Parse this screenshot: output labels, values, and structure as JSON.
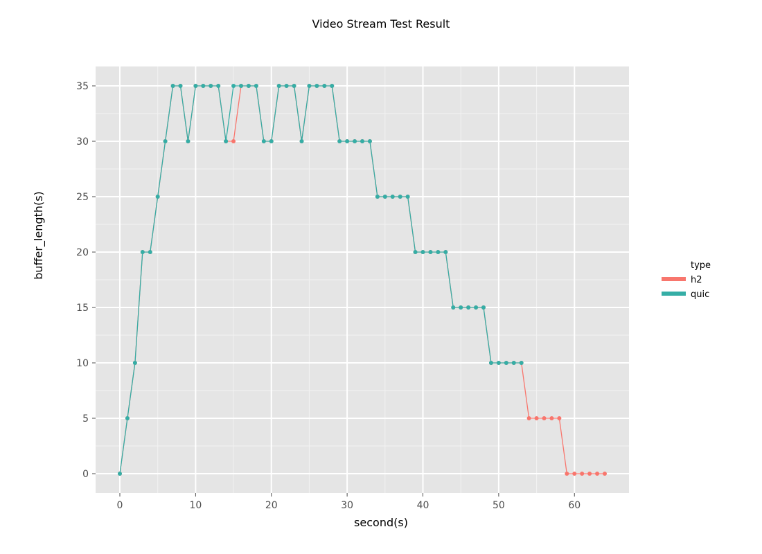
{
  "chart_data": {
    "type": "line",
    "title": "Video Stream Test Result",
    "xlabel": "second(s)",
    "ylabel": "buffer_length(s)",
    "xlim": [
      -3.2,
      67.2
    ],
    "ylim": [
      -1.75,
      36.75
    ],
    "xticks": [
      0,
      10,
      20,
      30,
      40,
      50,
      60
    ],
    "yticks": [
      0,
      5,
      10,
      15,
      20,
      25,
      30,
      35
    ],
    "grid": true,
    "legend": {
      "title": "type",
      "placement": "right"
    },
    "colors": {
      "h2": "#f8766d",
      "quic": "#35aea6",
      "panel": "#e5e5e5",
      "grid": "#ffffff"
    },
    "series": [
      {
        "name": "h2",
        "x": [
          0,
          1,
          2,
          3,
          4,
          5,
          6,
          7,
          8,
          9,
          10,
          11,
          12,
          13,
          14,
          15,
          16,
          17,
          18,
          19,
          20,
          21,
          22,
          23,
          24,
          25,
          26,
          27,
          28,
          29,
          30,
          31,
          32,
          33,
          34,
          35,
          36,
          37,
          38,
          39,
          40,
          41,
          42,
          43,
          44,
          45,
          46,
          47,
          48,
          49,
          50,
          51,
          52,
          53,
          54,
          55,
          56,
          57,
          58,
          59,
          60,
          61,
          62,
          63,
          64
        ],
        "y": [
          0,
          5,
          10,
          20,
          20,
          25,
          30,
          35,
          35,
          30,
          35,
          35,
          35,
          35,
          30,
          30,
          35,
          35,
          35,
          30,
          30,
          35,
          35,
          35,
          30,
          35,
          35,
          35,
          35,
          30,
          30,
          30,
          30,
          30,
          25,
          25,
          25,
          25,
          25,
          20,
          20,
          20,
          20,
          20,
          15,
          15,
          15,
          15,
          15,
          10,
          10,
          10,
          10,
          10,
          5,
          5,
          5,
          5,
          5,
          0,
          0,
          0,
          0,
          0,
          0
        ]
      },
      {
        "name": "quic",
        "x": [
          0,
          1,
          2,
          3,
          4,
          5,
          6,
          7,
          8,
          9,
          10,
          11,
          12,
          13,
          14,
          15,
          16,
          17,
          18,
          19,
          20,
          21,
          22,
          23,
          24,
          25,
          26,
          27,
          28,
          29,
          30,
          31,
          32,
          33,
          34,
          35,
          36,
          37,
          38,
          39,
          40,
          41,
          42,
          43,
          44,
          45,
          46,
          47,
          48,
          49,
          50,
          51,
          52,
          53
        ],
        "y": [
          0,
          5,
          10,
          20,
          20,
          25,
          30,
          35,
          35,
          30,
          35,
          35,
          35,
          35,
          30,
          35,
          35,
          35,
          35,
          30,
          30,
          35,
          35,
          35,
          30,
          35,
          35,
          35,
          35,
          30,
          30,
          30,
          30,
          30,
          25,
          25,
          25,
          25,
          25,
          20,
          20,
          20,
          20,
          20,
          15,
          15,
          15,
          15,
          15,
          10,
          10,
          10,
          10,
          10
        ]
      }
    ]
  }
}
